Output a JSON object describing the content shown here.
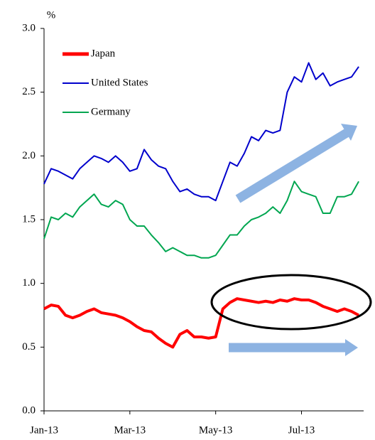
{
  "chart_data": {
    "type": "line",
    "y_label": "%",
    "categories": [
      "Jan-13",
      null,
      null,
      null,
      null,
      null,
      null,
      null,
      null,
      null,
      null,
      null,
      "Mar-13",
      null,
      null,
      null,
      null,
      null,
      null,
      null,
      null,
      null,
      null,
      null,
      "May-13",
      null,
      null,
      null,
      null,
      null,
      null,
      null,
      null,
      null,
      null,
      null,
      "Jul-13",
      null,
      null,
      null,
      null,
      null,
      null,
      null,
      null
    ],
    "series": [
      {
        "name": "Japan",
        "color": "#ff0000",
        "values": [
          0.8,
          0.83,
          0.82,
          0.75,
          0.73,
          0.75,
          0.78,
          0.8,
          0.77,
          0.76,
          0.75,
          0.73,
          0.7,
          0.66,
          0.63,
          0.62,
          0.57,
          0.53,
          0.5,
          0.6,
          0.63,
          0.58,
          0.58,
          0.57,
          0.58,
          0.8,
          0.85,
          0.88,
          0.87,
          0.86,
          0.85,
          0.86,
          0.85,
          0.87,
          0.86,
          0.88,
          0.87,
          0.87,
          0.85,
          0.82,
          0.8,
          0.78,
          0.8,
          0.78,
          0.75
        ]
      },
      {
        "name": "United States",
        "color": "#0000cc",
        "values": [
          1.78,
          1.9,
          1.88,
          1.85,
          1.82,
          1.9,
          1.95,
          2.0,
          1.98,
          1.95,
          2.0,
          1.95,
          1.88,
          1.9,
          2.05,
          1.97,
          1.92,
          1.9,
          1.8,
          1.72,
          1.74,
          1.7,
          1.68,
          1.68,
          1.65,
          1.8,
          1.95,
          1.92,
          2.02,
          2.15,
          2.12,
          2.2,
          2.18,
          2.2,
          2.5,
          2.62,
          2.58,
          2.73,
          2.6,
          2.65,
          2.55,
          2.58,
          2.6,
          2.62,
          2.7
        ]
      },
      {
        "name": "Germany",
        "color": "#00a650",
        "values": [
          1.35,
          1.52,
          1.5,
          1.55,
          1.52,
          1.6,
          1.65,
          1.7,
          1.62,
          1.6,
          1.65,
          1.62,
          1.5,
          1.45,
          1.45,
          1.38,
          1.32,
          1.25,
          1.28,
          1.25,
          1.22,
          1.22,
          1.2,
          1.2,
          1.22,
          1.3,
          1.38,
          1.38,
          1.45,
          1.5,
          1.52,
          1.55,
          1.6,
          1.55,
          1.65,
          1.8,
          1.72,
          1.7,
          1.68,
          1.55,
          1.55,
          1.68,
          1.68,
          1.7,
          1.8
        ]
      }
    ],
    "ylim": [
      0,
      3
    ],
    "yticks": [
      {
        "value": 0,
        "label": "0.0"
      },
      0.5,
      {
        "value": 1,
        "label": "1.0"
      },
      1.5,
      {
        "value": 2,
        "label": "2.0"
      },
      2.5,
      {
        "value": 3,
        "label": "3.0"
      }
    ],
    "grid": false,
    "legend": "upper left"
  }
}
